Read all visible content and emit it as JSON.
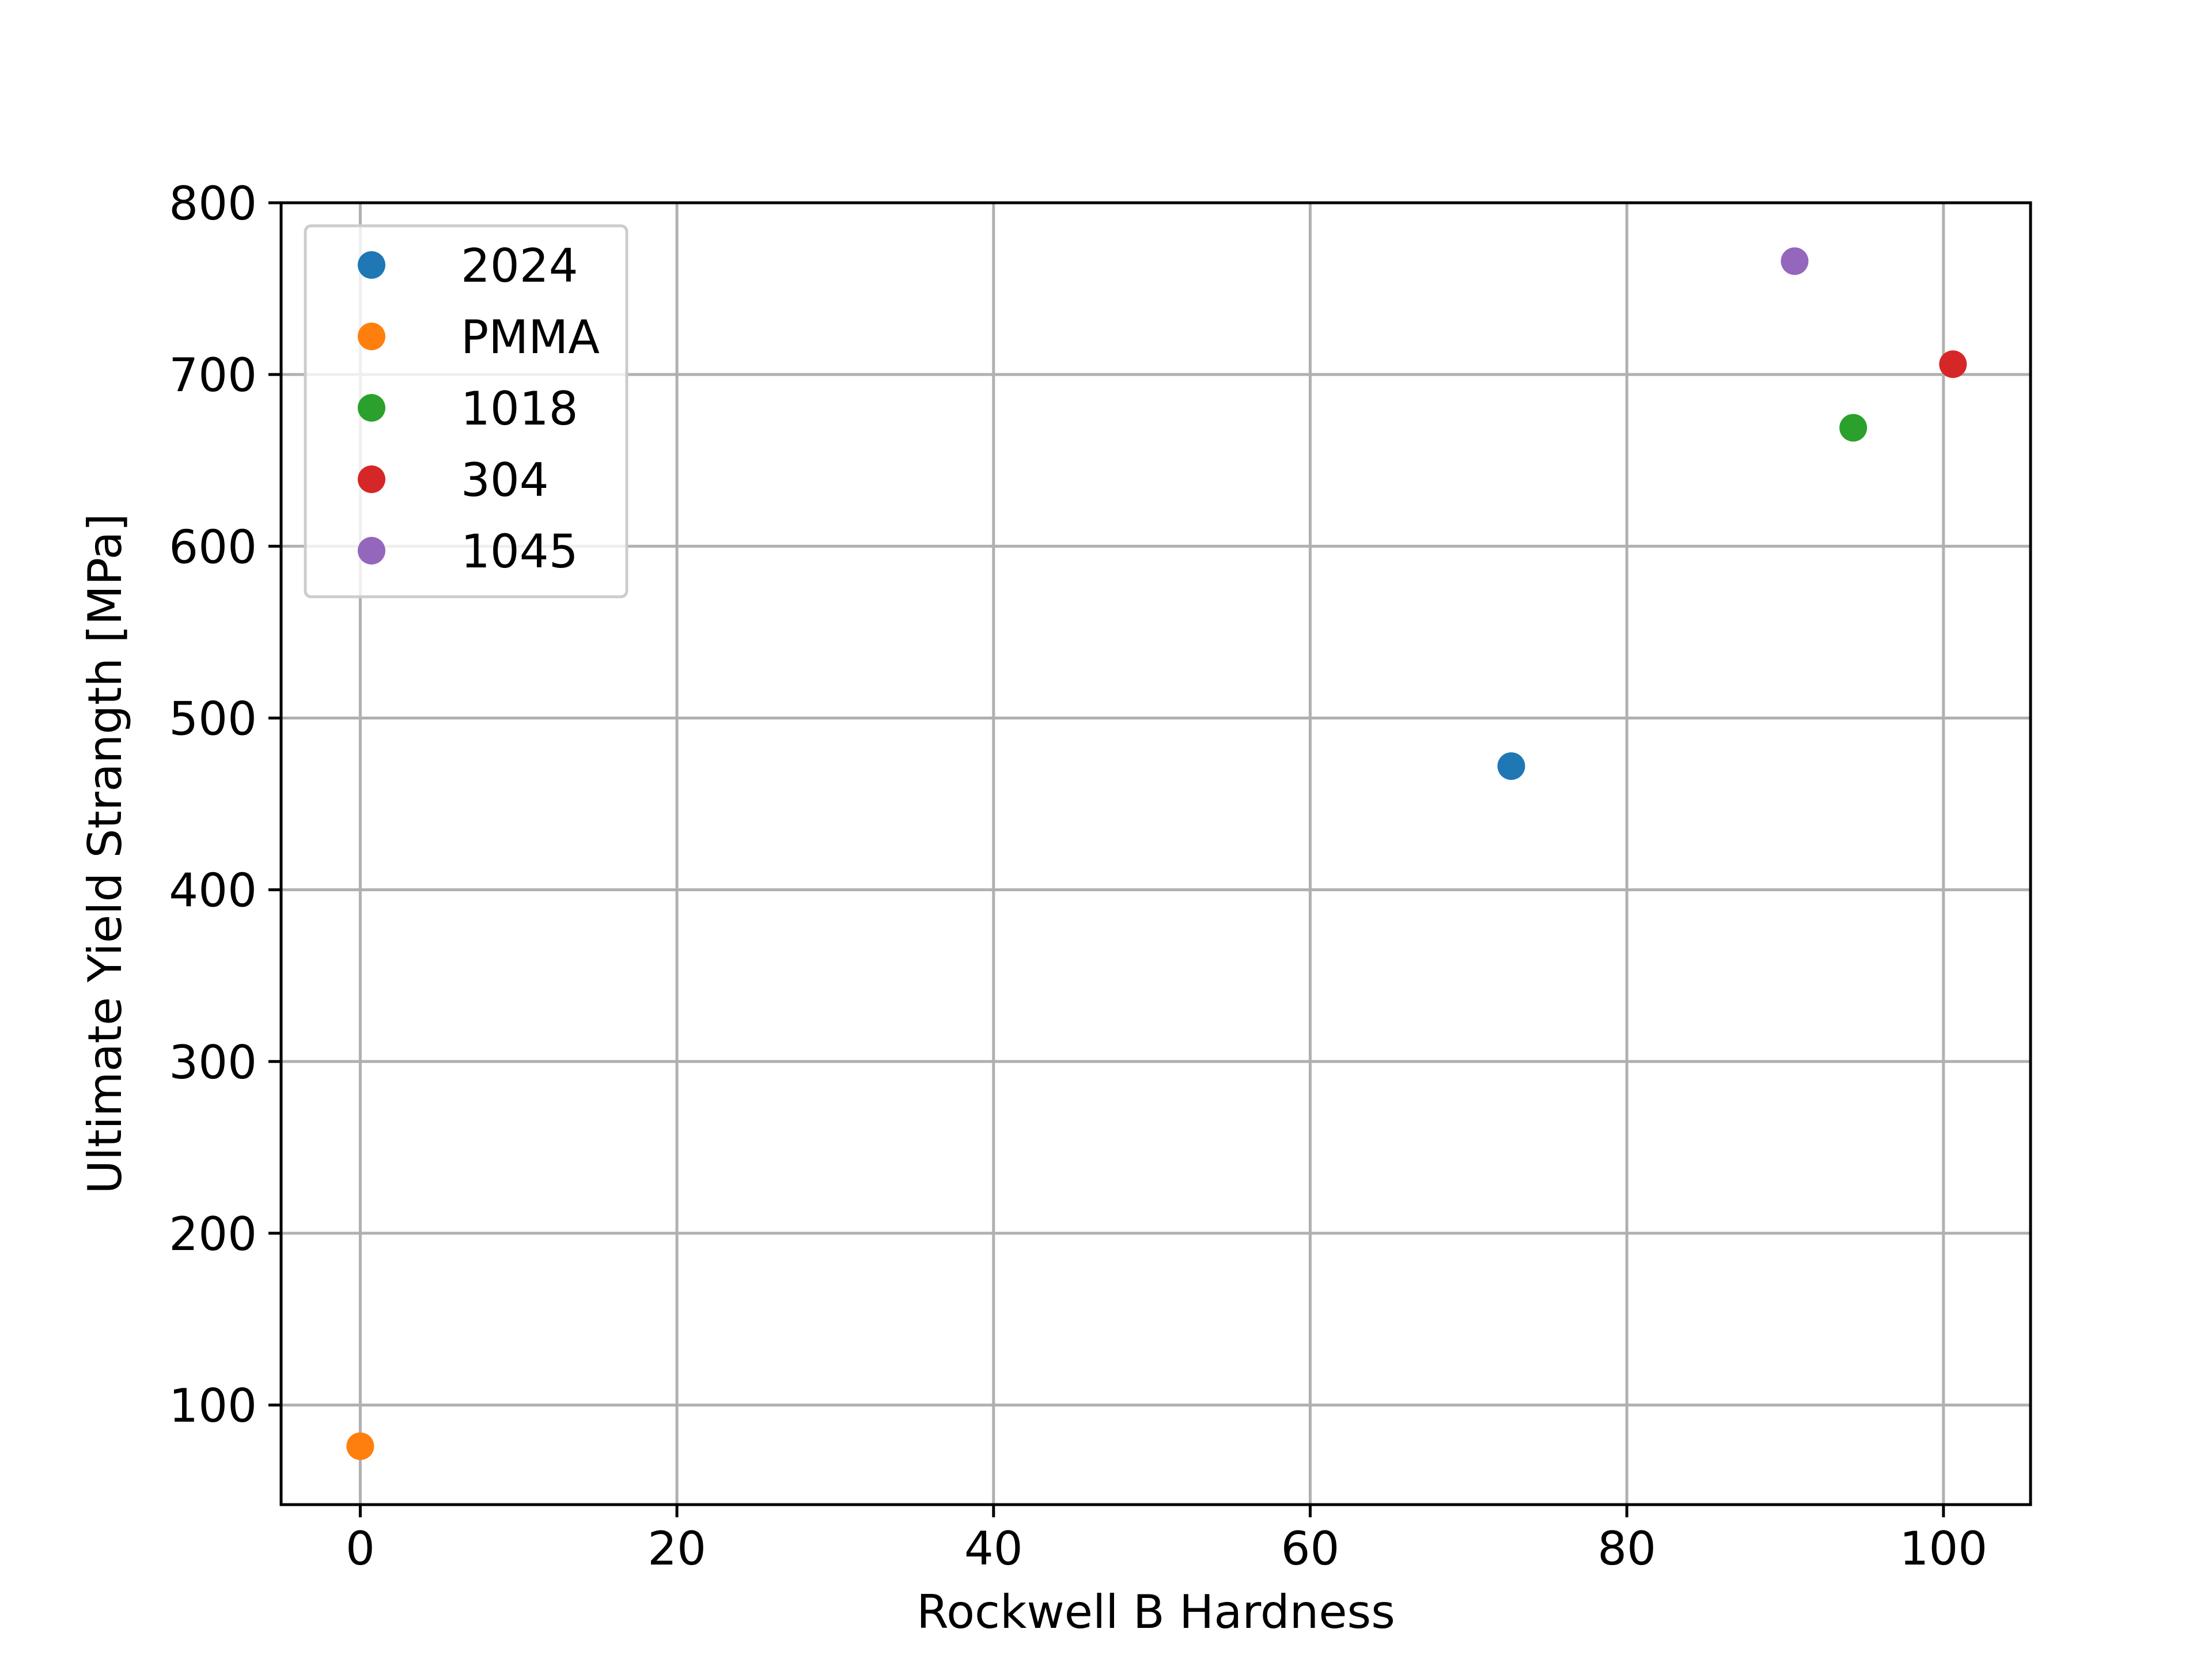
{
  "chart_data": {
    "type": "scatter",
    "title": "",
    "xlabel": "Rockwell B Hardness",
    "ylabel": "Ultimate Yield Strangth [MPa]",
    "xlim": [
      -5,
      105.5
    ],
    "ylim": [
      42,
      800
    ],
    "xticks": [
      0,
      20,
      40,
      60,
      80,
      100
    ],
    "yticks": [
      100,
      200,
      300,
      400,
      500,
      600,
      700,
      800
    ],
    "grid": true,
    "legend_position": "top-left",
    "series": [
      {
        "name": "2024",
        "color": "#1f77b4",
        "points": [
          {
            "x": 72.7,
            "y": 472
          }
        ]
      },
      {
        "name": "PMMA",
        "color": "#ff7f0e",
        "points": [
          {
            "x": 0,
            "y": 76
          }
        ]
      },
      {
        "name": "1018",
        "color": "#2ca02c",
        "points": [
          {
            "x": 94.3,
            "y": 669
          }
        ]
      },
      {
        "name": "304",
        "color": "#d62728",
        "points": [
          {
            "x": 100.6,
            "y": 706
          }
        ]
      },
      {
        "name": "1045",
        "color": "#9467bd",
        "points": [
          {
            "x": 90.6,
            "y": 766
          }
        ]
      }
    ]
  }
}
